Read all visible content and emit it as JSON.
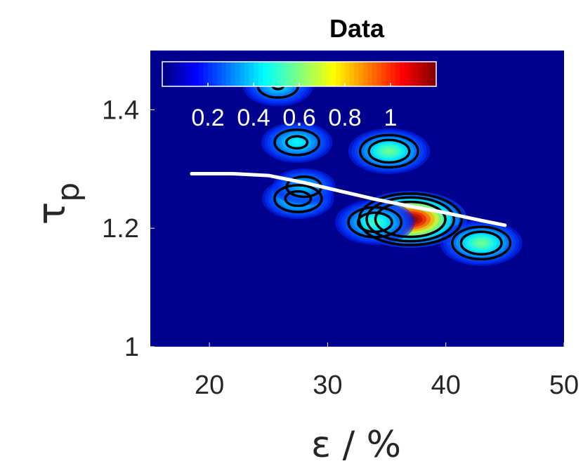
{
  "chart_data": {
    "type": "heatmap",
    "title": "Data",
    "xlabel": "ε / %",
    "ylabel": "τ",
    "ylabel_subscript": "p",
    "xlim": [
      15,
      50
    ],
    "ylim": [
      1.0,
      1.5
    ],
    "x_ticks": [
      20,
      30,
      40,
      50
    ],
    "x_tick_labels": [
      "20",
      "30",
      "40",
      "50"
    ],
    "y_ticks": [
      1.0,
      1.2,
      1.4
    ],
    "y_tick_labels": [
      "1",
      "1.2",
      "1.4"
    ],
    "colormap": "jet",
    "background_color": "#00008f",
    "colorbar": {
      "placement": "inside top-left",
      "range": [
        0,
        1.2
      ],
      "ticks": [
        0.2,
        0.4,
        0.6,
        0.8,
        1.0
      ],
      "tick_labels": [
        "0.2",
        "0.4",
        "0.6",
        "0.8",
        "1"
      ],
      "label_color": "#ffffff"
    },
    "density_peaks": [
      {
        "x": 37.0,
        "y": 1.215,
        "value": 1.0
      },
      {
        "x": 34.0,
        "y": 1.21,
        "value": 0.35
      },
      {
        "x": 43.0,
        "y": 1.175,
        "value": 0.4
      },
      {
        "x": 27.5,
        "y": 1.25,
        "value": 0.3
      },
      {
        "x": 28.0,
        "y": 1.27,
        "value": 0.22
      },
      {
        "x": 35.2,
        "y": 1.33,
        "value": 0.4
      },
      {
        "x": 27.4,
        "y": 1.345,
        "value": 0.28
      },
      {
        "x": 25.8,
        "y": 1.44,
        "value": 0.25
      }
    ],
    "contour_levels": [
      0.14,
      0.24,
      0.4
    ],
    "contour_color": "#000000",
    "fit_line": {
      "color": "#ffffff",
      "x": [
        18.5,
        22,
        25,
        28,
        31,
        34,
        37,
        40,
        43,
        45
      ],
      "y": [
        1.292,
        1.292,
        1.289,
        1.277,
        1.263,
        1.249,
        1.237,
        1.226,
        1.213,
        1.205
      ]
    }
  }
}
